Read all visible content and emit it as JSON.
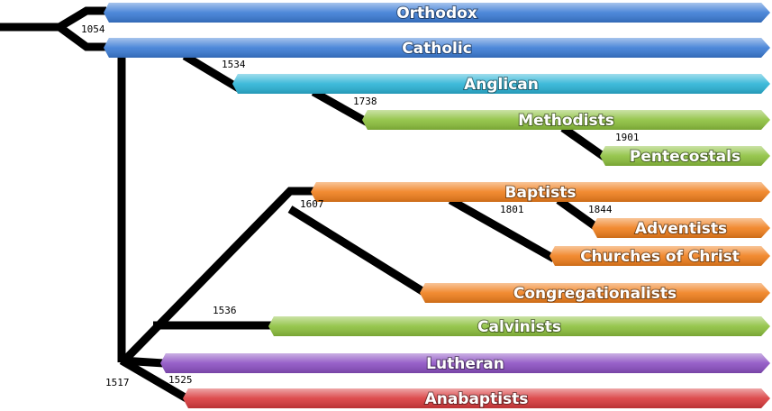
{
  "branches": [
    {
      "label": "Orthodox"
    },
    {
      "label": "Catholic"
    },
    {
      "label": "Anglican"
    },
    {
      "label": "Methodists"
    },
    {
      "label": "Pentecostals"
    },
    {
      "label": "Baptists"
    },
    {
      "label": "Adventists"
    },
    {
      "label": "Churches of Christ"
    },
    {
      "label": "Congregationalists"
    },
    {
      "label": "Calvinists"
    },
    {
      "label": "Lutheran"
    },
    {
      "label": "Anabaptists"
    }
  ],
  "years": [
    "1054",
    "1534",
    "1738",
    "1901",
    "1607",
    "1801",
    "1844",
    "1536",
    "1517",
    "1525"
  ]
}
